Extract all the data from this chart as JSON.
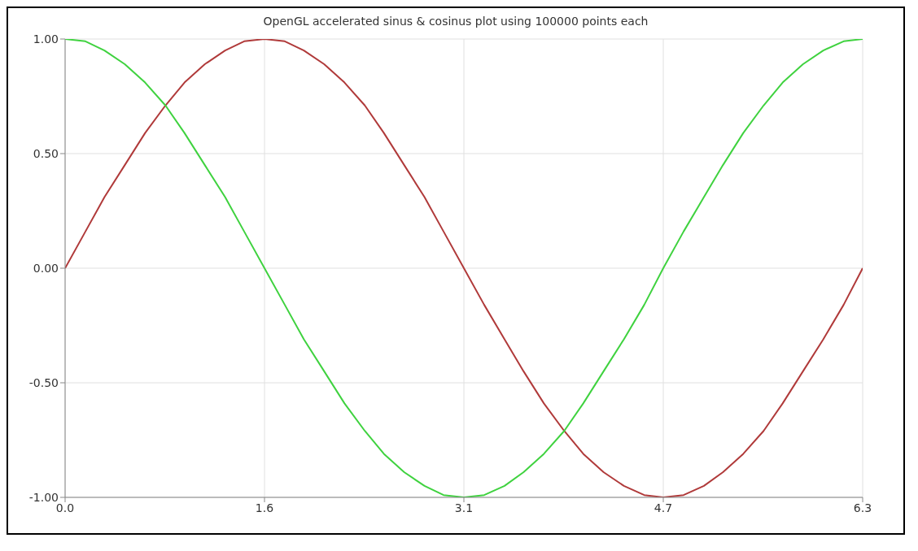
{
  "chart_data": {
    "type": "line",
    "title": "OpenGL accelerated sinus & cosinus plot using 100000 points each",
    "x": [
      0,
      0.16,
      0.31,
      0.47,
      0.63,
      0.79,
      0.94,
      1.1,
      1.26,
      1.41,
      1.57,
      1.73,
      1.88,
      2.04,
      2.2,
      2.36,
      2.51,
      2.67,
      2.83,
      2.98,
      3.14,
      3.3,
      3.46,
      3.61,
      3.77,
      3.93,
      4.08,
      4.24,
      4.4,
      4.56,
      4.71,
      4.87,
      5.03,
      5.18,
      5.34,
      5.5,
      5.65,
      5.81,
      5.97,
      6.13,
      6.28
    ],
    "series": [
      {
        "color": "#b03a3a",
        "values": [
          0,
          0.16,
          0.31,
          0.45,
          0.59,
          0.71,
          0.81,
          0.89,
          0.95,
          0.99,
          1,
          0.99,
          0.95,
          0.89,
          0.81,
          0.71,
          0.59,
          0.45,
          0.31,
          0.16,
          0,
          -0.16,
          -0.31,
          -0.45,
          -0.59,
          -0.71,
          -0.81,
          -0.89,
          -0.95,
          -0.99,
          -1,
          -0.99,
          -0.95,
          -0.89,
          -0.81,
          -0.71,
          -0.59,
          -0.45,
          -0.31,
          -0.16,
          0
        ]
      },
      {
        "color": "#3fd23f",
        "values": [
          1,
          0.99,
          0.95,
          0.89,
          0.81,
          0.71,
          0.59,
          0.45,
          0.31,
          0.16,
          0,
          -0.16,
          -0.31,
          -0.45,
          -0.59,
          -0.71,
          -0.81,
          -0.89,
          -0.95,
          -0.99,
          -1,
          -0.99,
          -0.95,
          -0.89,
          -0.81,
          -0.71,
          -0.59,
          -0.45,
          -0.31,
          -0.16,
          0,
          0.16,
          0.31,
          0.45,
          0.59,
          0.71,
          0.81,
          0.89,
          0.95,
          0.99,
          1
        ]
      }
    ],
    "xlim": [
      0,
      6.28
    ],
    "xticks": [
      {
        "value": 0,
        "label": "0.0"
      },
      {
        "value": 1.57,
        "label": "1.6"
      },
      {
        "value": 3.14,
        "label": "3.1"
      },
      {
        "value": 4.71,
        "label": "4.7"
      },
      {
        "value": 6.28,
        "label": "6.3"
      }
    ],
    "ylim": [
      -1,
      1
    ],
    "yticks": [
      {
        "value": -1,
        "label": "-1.00"
      },
      {
        "value": -0.5,
        "label": "-0.50"
      },
      {
        "value": 0,
        "label": "0.00"
      },
      {
        "value": 0.5,
        "label": "0.50"
      },
      {
        "value": 1,
        "label": "1.00"
      }
    ],
    "grid": true,
    "marker": "none",
    "line_style": "solid"
  }
}
